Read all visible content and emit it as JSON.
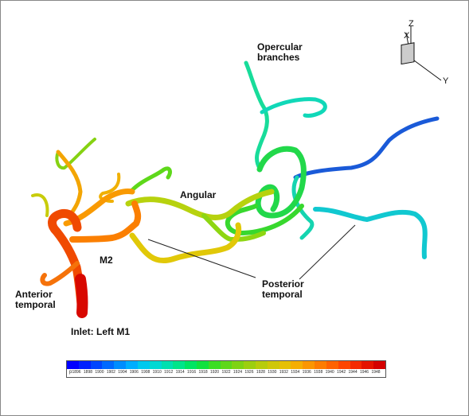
{
  "labels": {
    "opercular": "Opercular\nbranches",
    "angular": "Angular",
    "m2": "M2",
    "anterior": "Anterior\ntemporal",
    "posterior": "Posterior\ntemporal",
    "inlet": "Inlet: Left M1"
  },
  "axes": {
    "z": "Z",
    "x": "X",
    "y": "Y"
  },
  "colorbar": {
    "variable": "p",
    "ticks": [
      "1896",
      "1898",
      "1900",
      "1902",
      "1904",
      "1906",
      "1908",
      "1910",
      "1912",
      "1914",
      "1916",
      "1918",
      "1920",
      "1922",
      "1924",
      "1926",
      "1928",
      "1930",
      "1932",
      "1934",
      "1936",
      "1938",
      "1940",
      "1942",
      "1944",
      "1946",
      "1948"
    ],
    "colors": [
      "#0000ff",
      "#0020ff",
      "#0045ff",
      "#0069ff",
      "#008dff",
      "#00aeff",
      "#00c9ee",
      "#00d9d3",
      "#00e0b0",
      "#00e58a",
      "#00e562",
      "#10e23e",
      "#3ade24",
      "#5ed81a",
      "#7ed314",
      "#9ccf10",
      "#b7cc0c",
      "#cfc708",
      "#e6c005",
      "#f5ae03",
      "#fb9602",
      "#fd7c01",
      "#fe6201",
      "#fd4501",
      "#f52a01",
      "#e51400",
      "#d40000"
    ]
  }
}
